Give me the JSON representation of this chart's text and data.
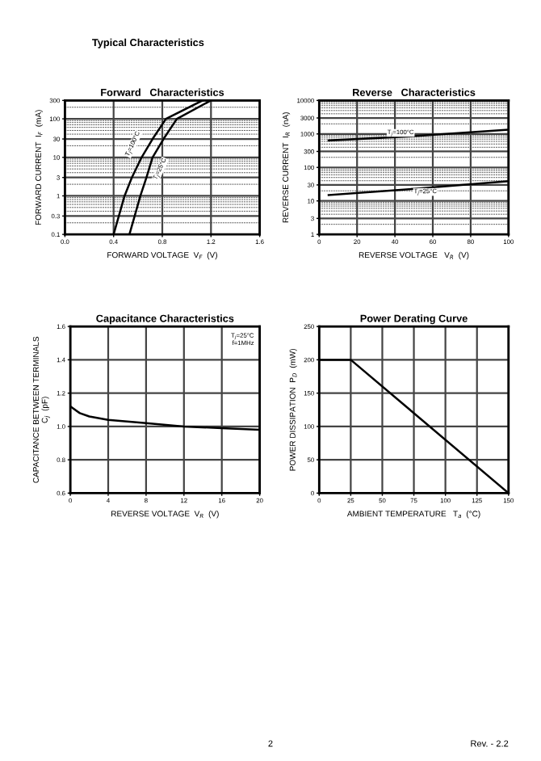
{
  "chart_data": [
    {
      "type": "other",
      "title": "Typical Characteristics",
      "annotations": [
        "2",
        "Rev. - 2.2"
      ]
    },
    {
      "type": "line",
      "title": "Forward   Characteristics",
      "xlabel": "FORWARD VOLTAGE  V$_{F}$  (V)",
      "ylabel": "FORWARD CURRENT  I$_{F}$  (mA)",
      "log": "y",
      "xlim": [
        0.0,
        1.6
      ],
      "xticks": [
        {
          "value": 0.0,
          "label": "0.0"
        },
        0.4,
        0.8,
        1.2,
        1.6
      ],
      "ylim": [
        0.1,
        300
      ],
      "yticks": [
        0.1,
        0.3,
        1,
        3,
        10,
        30,
        100,
        300
      ],
      "grid": true,
      "legend": false,
      "series": [
        {
          "name": "T$_{j}$=100°C",
          "color": "#000000",
          "x": [
            0.4,
            0.49,
            0.55,
            0.63,
            0.72,
            0.83,
            1.13
          ],
          "values": [
            0.1,
            1,
            3,
            10,
            30,
            100,
            300
          ]
        },
        {
          "name": "T$_{j}$=25°C",
          "color": "#000000",
          "x": [
            0.53,
            0.62,
            0.67,
            0.72,
            0.81,
            0.92,
            1.2
          ],
          "values": [
            0.1,
            1,
            3,
            10,
            30,
            100,
            300
          ]
        }
      ]
    },
    {
      "type": "line",
      "title": "Reverse   Characteristics",
      "xlabel": "REVERSE VOLTAGE   V$_{R}$  (V)",
      "ylabel": "REVERSE CURRENT  I$_{R}$  (nA)",
      "log": "y",
      "xlim": [
        0,
        100
      ],
      "xticks": [
        0,
        20,
        40,
        60,
        80,
        100
      ],
      "ylim": [
        1,
        10000
      ],
      "yticks": [
        1,
        3,
        10,
        30,
        100,
        300,
        1000,
        3000,
        10000
      ],
      "grid": true,
      "legend": false,
      "series": [
        {
          "name": "T$_{j}$=100°C",
          "color": "#000000",
          "x": [
            5,
            50,
            100
          ],
          "values": [
            640,
            860,
            1340
          ]
        },
        {
          "name": "T$_{j}$=25°C",
          "color": "#000000",
          "x": [
            5,
            50,
            100
          ],
          "values": [
            15,
            23,
            39
          ]
        }
      ]
    },
    {
      "type": "line",
      "title": "Capacitance Characteristics",
      "xlabel": "REVERSE VOLTAGE  V$_{R}$  (V)",
      "ylabel": "CAPACITANCE BETWEEN TERMINALS\nC$_{j}$  (pF)",
      "xlim": [
        0,
        20
      ],
      "xticks": [
        0,
        4,
        8,
        12,
        16,
        20
      ],
      "ylim": [
        0.6,
        1.6
      ],
      "yticks": [
        0.6,
        0.8,
        {
          "value": 1.0,
          "label": "1.0"
        },
        1.2,
        1.4,
        1.6
      ],
      "grid": true,
      "legend": false,
      "annotations": [
        "T$_{j}$=25°C\nf=1MHz"
      ],
      "series": [
        {
          "color": "#000000",
          "x": [
            0,
            1,
            2,
            4,
            8,
            12,
            16,
            20
          ],
          "values": [
            1.12,
            1.08,
            1.06,
            1.04,
            1.02,
            1.0,
            0.99,
            0.98
          ]
        }
      ]
    },
    {
      "type": "line",
      "title": "Power Derating Curve",
      "xlabel": "AMBIENT TEMPERATURE   T$_{a}$  (°C)",
      "ylabel": "POWER DISSIPATION  P$_{D}$  (mW)",
      "xlim": [
        0,
        150
      ],
      "xticks": [
        0,
        25,
        50,
        75,
        100,
        125,
        150
      ],
      "ylim": [
        0,
        250
      ],
      "yticks": [
        0,
        50,
        100,
        150,
        200,
        250
      ],
      "grid": true,
      "legend": false,
      "series": [
        {
          "color": "#000000",
          "x": [
            0,
            25,
            150
          ],
          "values": [
            200,
            200,
            0
          ]
        }
      ]
    }
  ]
}
